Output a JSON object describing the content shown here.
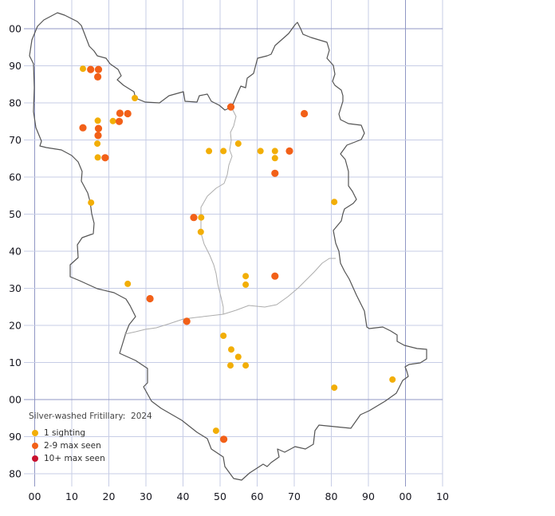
{
  "legend": {
    "title": "Silver-washed Fritillary:  2024",
    "items": [
      {
        "label": "1 sighting",
        "color": "#F2AE06"
      },
      {
        "label": "2-9 max seen",
        "color": "#F26018"
      },
      {
        "label": "10+ max seen",
        "color": "#C8102E"
      }
    ]
  },
  "axes": {
    "x_ticks": [
      "00",
      "10",
      "20",
      "30",
      "40",
      "50",
      "60",
      "70",
      "80",
      "90",
      "00",
      "10"
    ],
    "y_ticks": [
      "00",
      "90",
      "80",
      "70",
      "60",
      "50",
      "40",
      "30",
      "20",
      "10",
      "00",
      "90",
      "80"
    ],
    "grid_interval": 10,
    "light_grid_color": "#C7CDE6",
    "dark_grid_color": "#9097C4"
  },
  "chart_data": {
    "type": "scatter",
    "title": "Silver-washed Fritillary:  2024",
    "x_range_units": [
      0,
      110
    ],
    "y_range_units": [
      -20,
      100
    ],
    "grid_interval": 10,
    "legend_position": "bottom-left",
    "series": [
      {
        "name": "1 sighting",
        "color": "#F2AE06",
        "points": [
          [
            13.0,
            89.2
          ],
          [
            27.0,
            81.3
          ],
          [
            21.1,
            75.1
          ],
          [
            17.0,
            75.2
          ],
          [
            16.9,
            69.0
          ],
          [
            17.0,
            65.3
          ],
          [
            15.2,
            53.1
          ],
          [
            44.9,
            49.1
          ],
          [
            44.8,
            45.2
          ],
          [
            54.9,
            69.0
          ],
          [
            47.0,
            67.0
          ],
          [
            50.9,
            67.0
          ],
          [
            60.9,
            67.0
          ],
          [
            64.8,
            67.0
          ],
          [
            64.8,
            65.1
          ],
          [
            56.9,
            33.3
          ],
          [
            56.9,
            31.0
          ],
          [
            25.1,
            31.2
          ],
          [
            50.9,
            17.2
          ],
          [
            53.0,
            13.5
          ],
          [
            54.9,
            11.5
          ],
          [
            52.8,
            9.2
          ],
          [
            56.9,
            9.2
          ],
          [
            80.8,
            3.2
          ],
          [
            96.5,
            5.4
          ],
          [
            48.9,
            -8.4
          ],
          [
            80.8,
            53.3
          ]
        ]
      },
      {
        "name": "2-9 max seen",
        "color": "#F26018",
        "points": [
          [
            15.1,
            89.0
          ],
          [
            17.2,
            89.0
          ],
          [
            17.0,
            87.0
          ],
          [
            23.0,
            77.2
          ],
          [
            25.1,
            77.1
          ],
          [
            22.8,
            75.0
          ],
          [
            13.0,
            73.3
          ],
          [
            17.2,
            73.1
          ],
          [
            17.1,
            71.2
          ],
          [
            19.0,
            65.2
          ],
          [
            52.9,
            78.9
          ],
          [
            72.7,
            77.1
          ],
          [
            68.7,
            67.0
          ],
          [
            64.8,
            61.0
          ],
          [
            42.9,
            49.1
          ],
          [
            31.1,
            27.2
          ],
          [
            64.8,
            33.3
          ],
          [
            41.0,
            21.1
          ],
          [
            51.0,
            -10.7
          ]
        ]
      },
      {
        "name": "10+ max seen",
        "color": "#C8102E",
        "points": []
      }
    ]
  }
}
